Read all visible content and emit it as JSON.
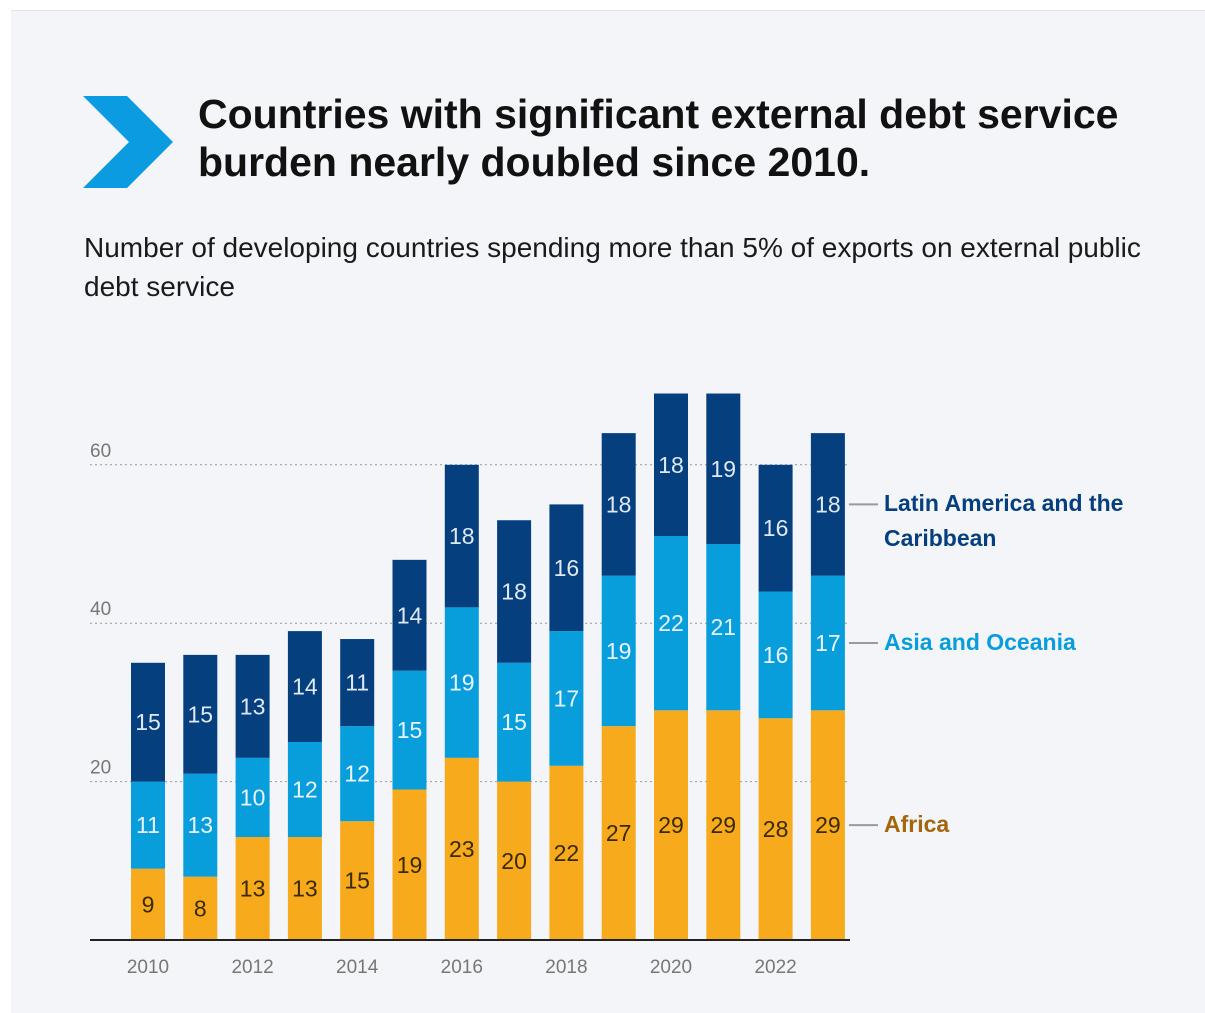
{
  "header": {
    "title": "Countries with significant external debt service burden nearly doubled since 2010.",
    "subtitle": "Number of developing countries spending more than 5% of exports on external public debt service"
  },
  "icons": {
    "header": "chevron-right-icon"
  },
  "colors": {
    "background": "#f4f5f9",
    "africa": "#f6aa1c",
    "asia": "#089ddb",
    "latam": "#053f7e",
    "chevron": "#0b9be0",
    "axis_text": "#777777",
    "africa_label": "#a3660b",
    "asia_label": "#089ddb",
    "latam_label": "#053f7e"
  },
  "chart_data": {
    "type": "bar",
    "stacked": true,
    "x": [
      2010,
      2011,
      2012,
      2013,
      2014,
      2015,
      2016,
      2017,
      2018,
      2019,
      2020,
      2021,
      2022,
      2023
    ],
    "x_tick_labels": [
      "2010",
      "2012",
      "2014",
      "2016",
      "2018",
      "2020",
      "2022"
    ],
    "y_ticks": [
      20,
      40,
      60
    ],
    "ylim": [
      0,
      69
    ],
    "grid": "dotted horizontal at y ticks",
    "legend_position": "right, labels at the last bar",
    "series": [
      {
        "name": "Africa",
        "key": "africa",
        "values": [
          9,
          8,
          13,
          13,
          15,
          19,
          23,
          20,
          22,
          27,
          29,
          29,
          28,
          29
        ]
      },
      {
        "name": "Asia and Oceania",
        "key": "asia",
        "values": [
          11,
          13,
          10,
          12,
          12,
          15,
          19,
          15,
          17,
          19,
          22,
          21,
          16,
          17
        ]
      },
      {
        "name": "Latin America and the Caribbean",
        "key": "latam",
        "values": [
          15,
          15,
          13,
          14,
          11,
          14,
          18,
          18,
          16,
          18,
          18,
          19,
          16,
          18
        ]
      }
    ],
    "legend_lines": {
      "latam": [
        "Latin America and the",
        "Caribbean"
      ],
      "asia": [
        "Asia and Oceania"
      ],
      "africa": [
        "Africa"
      ]
    }
  }
}
